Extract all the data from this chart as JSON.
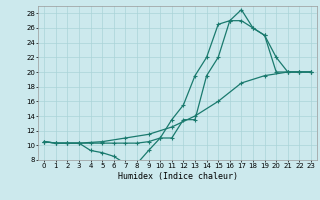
{
  "xlabel": "Humidex (Indice chaleur)",
  "bg_color": "#cce9ed",
  "grid_color": "#aad4d8",
  "line_color": "#1a7a6e",
  "xlim": [
    -0.5,
    23.5
  ],
  "ylim": [
    8,
    29
  ],
  "xticks": [
    0,
    1,
    2,
    3,
    4,
    5,
    6,
    7,
    8,
    9,
    10,
    11,
    12,
    13,
    14,
    15,
    16,
    17,
    18,
    19,
    20,
    21,
    22,
    23
  ],
  "yticks": [
    8,
    10,
    12,
    14,
    16,
    18,
    20,
    22,
    24,
    26,
    28
  ],
  "line1_x": [
    0,
    1,
    2,
    3,
    4,
    5,
    6,
    7,
    8,
    9,
    10,
    11,
    12,
    13,
    14,
    15,
    16,
    17,
    18,
    19,
    20,
    21,
    22,
    23
  ],
  "line1_y": [
    10.5,
    10.3,
    10.3,
    10.3,
    10.3,
    10.3,
    10.3,
    10.3,
    10.3,
    10.5,
    11.0,
    13.5,
    15.5,
    19.5,
    22.0,
    26.5,
    27.0,
    28.5,
    26.0,
    25.0,
    22.0,
    20.0,
    20.0,
    20.0
  ],
  "line2_x": [
    0,
    1,
    2,
    3,
    4,
    5,
    6,
    7,
    8,
    9,
    10,
    11,
    12,
    13,
    14,
    15,
    16,
    17,
    18,
    19,
    20,
    21,
    22,
    23
  ],
  "line2_y": [
    10.5,
    10.3,
    10.3,
    10.3,
    9.3,
    9.0,
    8.5,
    7.5,
    7.5,
    9.3,
    11.0,
    11.0,
    13.5,
    13.5,
    19.5,
    22.0,
    27.0,
    27.0,
    26.0,
    25.0,
    20.0,
    20.0,
    20.0,
    20.0
  ],
  "line3_x": [
    0,
    1,
    2,
    3,
    5,
    7,
    9,
    11,
    13,
    15,
    17,
    19,
    21,
    22,
    23
  ],
  "line3_y": [
    10.5,
    10.3,
    10.3,
    10.3,
    10.5,
    11.0,
    11.5,
    12.5,
    14.0,
    16.0,
    18.5,
    19.5,
    20.0,
    20.0,
    20.0
  ]
}
